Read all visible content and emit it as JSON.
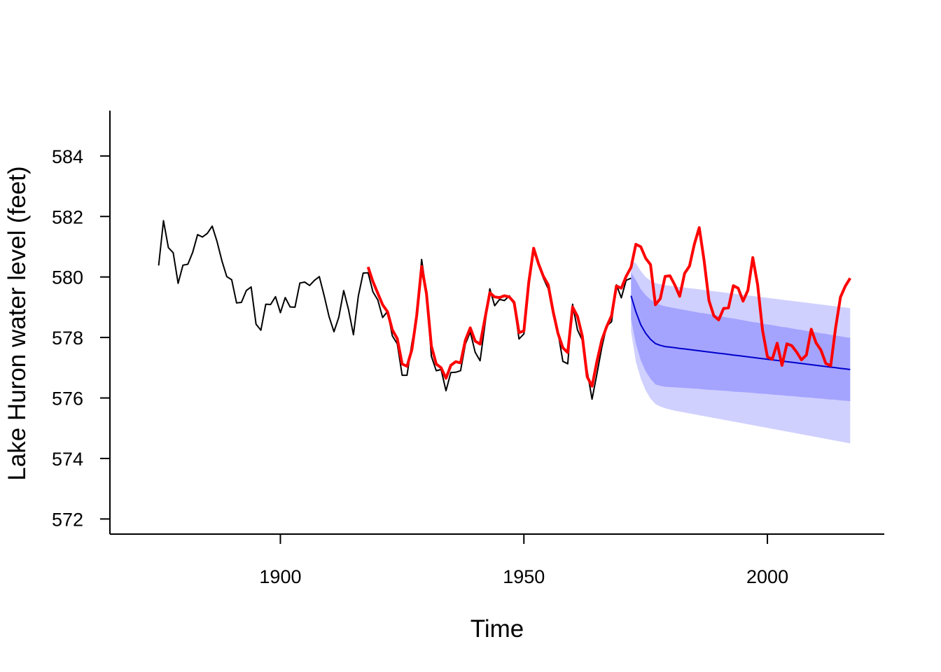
{
  "chart_data": {
    "type": "line",
    "title": "",
    "xlabel": "Time",
    "ylabel": "Lake Huron water level (feet)",
    "xlim": [
      1865,
      2024
    ],
    "ylim": [
      571.5,
      585.5
    ],
    "x_ticks": [
      1900,
      1950,
      2000
    ],
    "y_ticks": [
      572,
      574,
      576,
      578,
      580,
      582,
      584
    ],
    "grid": false,
    "legend": "none",
    "colors": {
      "observed_training": "#000000",
      "actual": "#ff0000",
      "forecast_mean": "#0000cc",
      "band_inner": "#a4a4ff",
      "band_outer": "#d0d0ff"
    },
    "series": [
      {
        "key": "observed_training",
        "start_year": 1875,
        "values": [
          580.38,
          581.86,
          580.97,
          580.8,
          579.79,
          580.39,
          580.42,
          580.82,
          581.4,
          581.32,
          581.44,
          581.68,
          581.17,
          580.53,
          580.01,
          579.91,
          579.14,
          579.16,
          579.55,
          579.67,
          578.44,
          578.24,
          579.1,
          579.09,
          579.35,
          578.82,
          579.32,
          579.01,
          579.0,
          579.8,
          579.83,
          579.72,
          579.89,
          580.01,
          579.37,
          578.69,
          578.19,
          578.67,
          579.55,
          578.92,
          578.09,
          579.37,
          580.13,
          580.14,
          579.51,
          579.24,
          578.66,
          578.86,
          578.05,
          577.79,
          576.75,
          576.75,
          577.82,
          578.64,
          580.58,
          579.48,
          577.38,
          576.9,
          576.94,
          576.24,
          576.84,
          576.85,
          576.9,
          577.79,
          578.18,
          577.51,
          577.23,
          578.42,
          579.61,
          579.05,
          579.26,
          579.22,
          579.38,
          579.1,
          577.95,
          578.12,
          579.75,
          580.85,
          580.41,
          579.96,
          579.61,
          578.76,
          578.18,
          577.21,
          577.13,
          579.1,
          578.25,
          577.91,
          576.89,
          575.96,
          576.8,
          577.68,
          578.38,
          578.52,
          579.74,
          579.31,
          579.89,
          579.96
        ]
      },
      {
        "key": "actual",
        "start_year": 1918,
        "values": [
          580.33,
          579.85,
          579.46,
          579.08,
          578.85,
          578.25,
          577.96,
          577.12,
          577.05,
          577.6,
          578.73,
          580.35,
          579.45,
          577.72,
          577.12,
          577.0,
          576.65,
          577.08,
          577.2,
          577.16,
          577.92,
          578.32,
          577.88,
          577.78,
          578.62,
          579.48,
          579.34,
          579.32,
          579.38,
          579.34,
          579.16,
          578.16,
          578.22,
          579.82,
          580.95,
          580.44,
          580.02,
          579.74,
          578.86,
          578.14,
          577.66,
          577.5,
          579.01,
          578.7,
          578.04,
          576.7,
          576.39,
          577.21,
          577.92,
          578.36,
          578.72,
          579.7,
          579.63,
          580.02,
          580.32,
          581.08,
          581.0,
          580.62,
          580.41,
          579.08,
          579.28,
          580.02,
          580.04,
          579.73,
          579.36,
          580.12,
          580.36,
          581.08,
          581.63,
          580.55,
          579.22,
          578.72,
          578.58,
          578.96,
          578.98,
          579.71,
          579.63,
          579.2,
          579.56,
          580.64,
          579.74,
          578.24,
          577.36,
          577.28,
          577.81,
          577.08,
          577.79,
          577.73,
          577.52,
          577.26,
          577.42,
          578.27,
          577.82,
          577.58,
          577.14,
          577.07,
          578.31,
          579.33,
          579.7,
          579.96
        ]
      },
      {
        "key": "forecast_mean",
        "start_year": 1972,
        "values": [
          579.38,
          578.85,
          578.42,
          578.14,
          577.94,
          577.8,
          577.74,
          577.7,
          577.68,
          577.66,
          577.64,
          577.62,
          577.6,
          577.58,
          577.56,
          577.54,
          577.52,
          577.5,
          577.48,
          577.46,
          577.44,
          577.42,
          577.4,
          577.38,
          577.36,
          577.34,
          577.32,
          577.3,
          577.28,
          577.26,
          577.24,
          577.22,
          577.2,
          577.18,
          577.16,
          577.14,
          577.12,
          577.1,
          577.08,
          577.06,
          577.04,
          577.02,
          577.0,
          576.98,
          576.96,
          576.94
        ]
      },
      {
        "key": "pi80_upper",
        "start_year": 1972,
        "values": [
          580.15,
          579.9,
          579.6,
          579.4,
          579.25,
          579.15,
          579.08,
          579.03,
          579.0,
          578.97,
          578.94,
          578.91,
          578.88,
          578.85,
          578.82,
          578.8,
          578.77,
          578.74,
          578.71,
          578.68,
          578.65,
          578.63,
          578.6,
          578.57,
          578.54,
          578.51,
          578.49,
          578.46,
          578.43,
          578.41,
          578.38,
          578.35,
          578.33,
          578.3,
          578.27,
          578.25,
          578.22,
          578.19,
          578.17,
          578.14,
          578.12,
          578.09,
          578.06,
          578.04,
          578.01,
          577.99
        ]
      },
      {
        "key": "pi80_lower",
        "start_year": 1972,
        "values": [
          578.61,
          577.8,
          577.24,
          576.88,
          576.63,
          576.45,
          576.4,
          576.37,
          576.36,
          576.35,
          576.34,
          576.33,
          576.32,
          576.31,
          576.3,
          576.28,
          576.27,
          576.26,
          576.25,
          576.24,
          576.23,
          576.21,
          576.2,
          576.19,
          576.18,
          576.17,
          576.15,
          576.14,
          576.13,
          576.11,
          576.1,
          576.09,
          576.07,
          576.06,
          576.05,
          576.03,
          576.02,
          576.01,
          575.99,
          575.98,
          575.96,
          575.95,
          575.94,
          575.92,
          575.91,
          575.89
        ]
      },
      {
        "key": "pi95_upper",
        "start_year": 1972,
        "values": [
          580.56,
          580.45,
          580.2,
          580.0,
          579.88,
          579.8,
          579.76,
          579.73,
          579.71,
          579.69,
          579.67,
          579.65,
          579.63,
          579.61,
          579.59,
          579.57,
          579.55,
          579.53,
          579.51,
          579.49,
          579.47,
          579.45,
          579.43,
          579.41,
          579.39,
          579.37,
          579.35,
          579.33,
          579.31,
          579.29,
          579.27,
          579.25,
          579.23,
          579.21,
          579.19,
          579.17,
          579.15,
          579.13,
          579.11,
          579.09,
          579.07,
          579.05,
          579.03,
          579.01,
          578.99,
          578.97
        ]
      },
      {
        "key": "pi95_lower",
        "start_year": 1972,
        "values": [
          578.2,
          577.2,
          576.64,
          576.25,
          575.98,
          575.8,
          575.72,
          575.66,
          575.62,
          575.58,
          575.55,
          575.52,
          575.49,
          575.46,
          575.43,
          575.4,
          575.37,
          575.34,
          575.31,
          575.28,
          575.25,
          575.22,
          575.19,
          575.16,
          575.13,
          575.1,
          575.07,
          575.04,
          575.01,
          574.98,
          574.95,
          574.92,
          574.89,
          574.86,
          574.83,
          574.8,
          574.77,
          574.74,
          574.71,
          574.68,
          574.65,
          574.62,
          574.59,
          574.56,
          574.53,
          574.5
        ]
      }
    ]
  }
}
